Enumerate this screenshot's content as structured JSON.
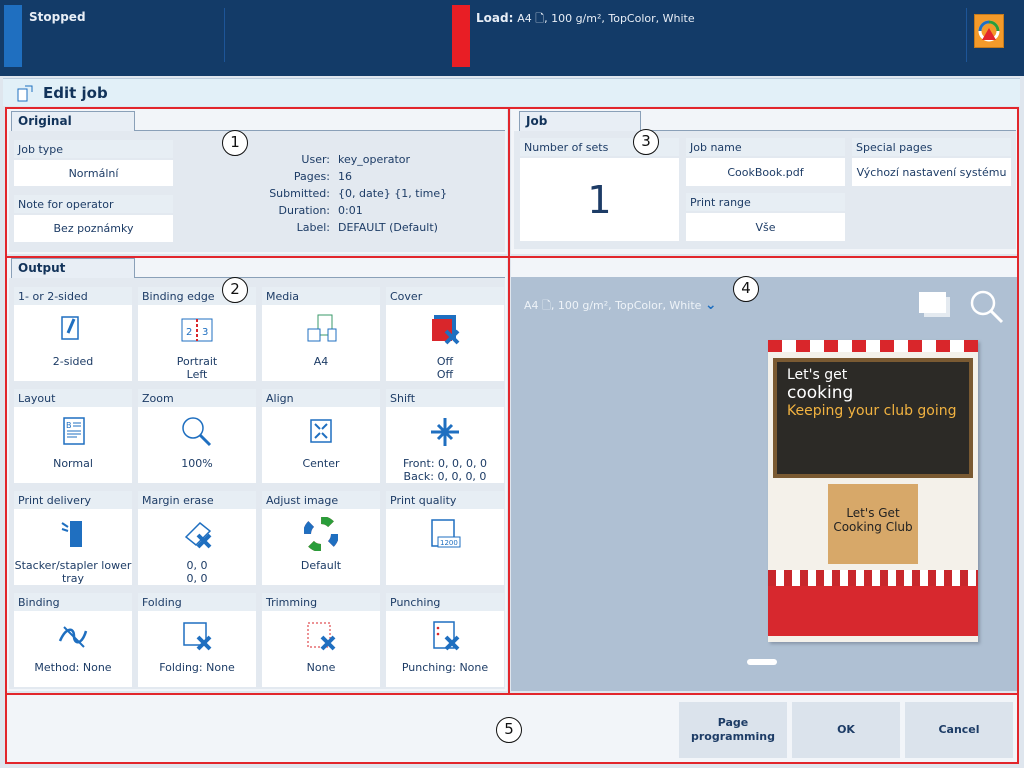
{
  "status": {
    "state": "Stopped",
    "load_label": "Load:",
    "load_value": "A4 🗋, 100 g/m², TopColor, White",
    "alert_icon": "color-wheel-warning-icon"
  },
  "header": {
    "title": "Edit job"
  },
  "original": {
    "tab": "Original",
    "job_type_label": "Job type",
    "job_type": "Normální",
    "note_label": "Note for operator",
    "note": "Bez poznámky",
    "info": [
      {
        "k": "User:",
        "v": "key_operator"
      },
      {
        "k": "Pages:",
        "v": "16"
      },
      {
        "k": "Submitted:",
        "v": "{0, date} {1, time}"
      },
      {
        "k": "Duration:",
        "v": "0:01"
      },
      {
        "k": "Label:",
        "v": "DEFAULT (Default)"
      }
    ]
  },
  "job": {
    "tab": "Job",
    "sets_label": "Number of sets",
    "sets": "1",
    "name_label": "Job name",
    "name": "CookBook.pdf",
    "range_label": "Print range",
    "range": "Vše",
    "special_label": "Special pages",
    "special": "Výchozí nastavení systému"
  },
  "output": {
    "tab": "Output",
    "tiles": [
      {
        "label": "1- or 2-sided",
        "value": "2-sided",
        "icon": "two-sided-icon"
      },
      {
        "label": "Binding edge",
        "value": "Portrait\nLeft",
        "icon": "binding-edge-icon"
      },
      {
        "label": "Media",
        "value": "A4",
        "icon": "media-icon"
      },
      {
        "label": "Cover",
        "value": "Off\nOff",
        "icon": "cover-off-icon"
      },
      {
        "label": "Layout",
        "value": "Normal",
        "icon": "layout-icon"
      },
      {
        "label": "Zoom",
        "value": "100%",
        "icon": "zoom-icon"
      },
      {
        "label": "Align",
        "value": "Center",
        "icon": "align-center-icon"
      },
      {
        "label": "Shift",
        "value": "Front: 0, 0, 0, 0\nBack: 0, 0, 0, 0",
        "icon": "shift-icon"
      },
      {
        "label": "Print delivery",
        "value": "Stacker/stapler lower\ntray",
        "icon": "print-delivery-icon"
      },
      {
        "label": "Margin erase",
        "value": "0, 0\n0, 0",
        "icon": "margin-erase-icon"
      },
      {
        "label": "Adjust image",
        "value": "Default",
        "icon": "color-wheel-icon"
      },
      {
        "label": "Print quality",
        "value": "",
        "icon": "print-quality-1200-icon",
        "badge": "1200"
      },
      {
        "label": "Binding",
        "value": "Method: None",
        "icon": "binding-icon"
      },
      {
        "label": "Folding",
        "value": "Folding: None",
        "icon": "folding-icon"
      },
      {
        "label": "Trimming",
        "value": "None",
        "icon": "trimming-icon"
      },
      {
        "label": "Punching",
        "value": "Punching: None",
        "icon": "punching-icon"
      }
    ]
  },
  "preview": {
    "media": "A4 🗋, 100 g/m², TopColor, White",
    "cover_title1": "Let's get",
    "cover_title2": "cooking",
    "cover_sub": "Keeping your club going",
    "cover_box": "Let's Get Cooking Club"
  },
  "callouts": [
    "1",
    "2",
    "3",
    "4",
    "5"
  ],
  "footer": {
    "page_programming": "Page programming",
    "ok": "OK",
    "cancel": "Cancel"
  }
}
